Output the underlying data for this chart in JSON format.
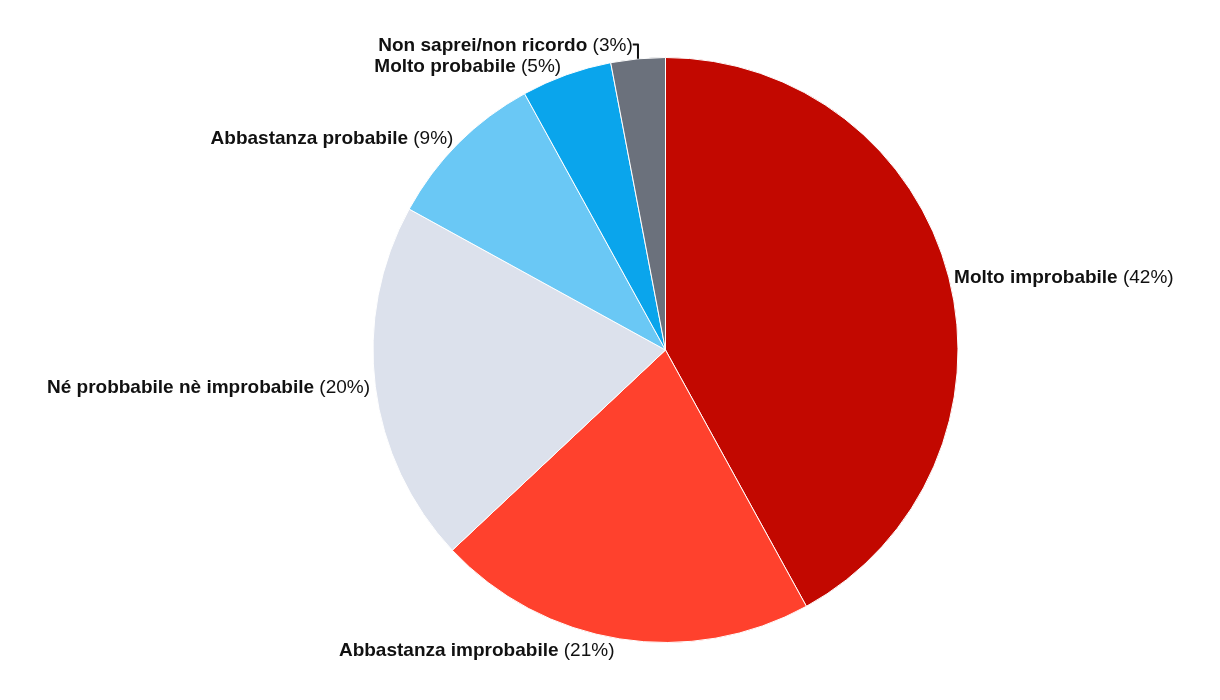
{
  "chart_data": {
    "type": "pie",
    "categories": [
      "Molto improbabile",
      "Abbastanza improbabile",
      "Né probbabile nè improbabile",
      "Abbastanza probabile",
      "Molto probabile",
      "Non saprei/non ricordo"
    ],
    "values": [
      42,
      21,
      20,
      9,
      5,
      3
    ],
    "value_labels": [
      "(42%)",
      "(21%)",
      "(20%)",
      "(9%)",
      "(5%)",
      "(3%)"
    ],
    "colors": [
      "#c20800",
      "#ff412d",
      "#dce1ec",
      "#6ac8f5",
      "#0aa5ec",
      "#6b717c"
    ],
    "legend": false
  }
}
